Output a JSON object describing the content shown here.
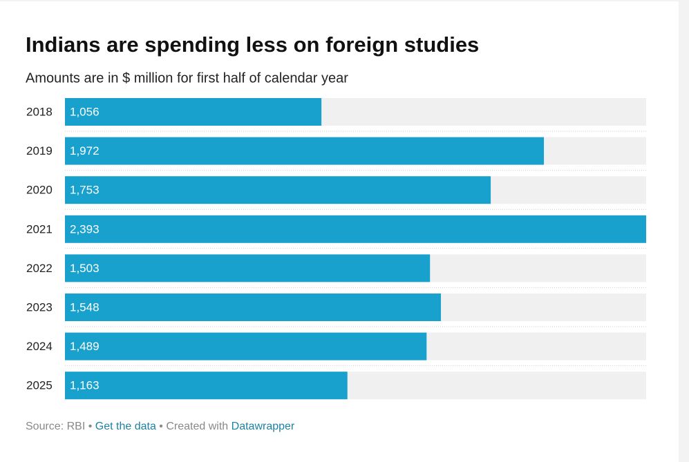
{
  "chart_data": {
    "type": "bar",
    "orientation": "horizontal",
    "title": "Indians are spending less on foreign studies",
    "subtitle": "Amounts are in $ million for first half of calendar year",
    "categories": [
      "2018",
      "2019",
      "2020",
      "2021",
      "2022",
      "2023",
      "2024",
      "2025"
    ],
    "values": [
      1056,
      1972,
      1753,
      2393,
      1503,
      1548,
      1489,
      1163
    ],
    "value_labels": [
      "1,056",
      "1,972",
      "1,753",
      "2,393",
      "1,503",
      "1,548",
      "1,489",
      "1,163"
    ],
    "color": "#18a1cd",
    "footer": {
      "source": "Source: RBI",
      "separator": "•",
      "get_data": "Get the data",
      "created_with": "Created with",
      "tool": "Datawrapper"
    }
  }
}
